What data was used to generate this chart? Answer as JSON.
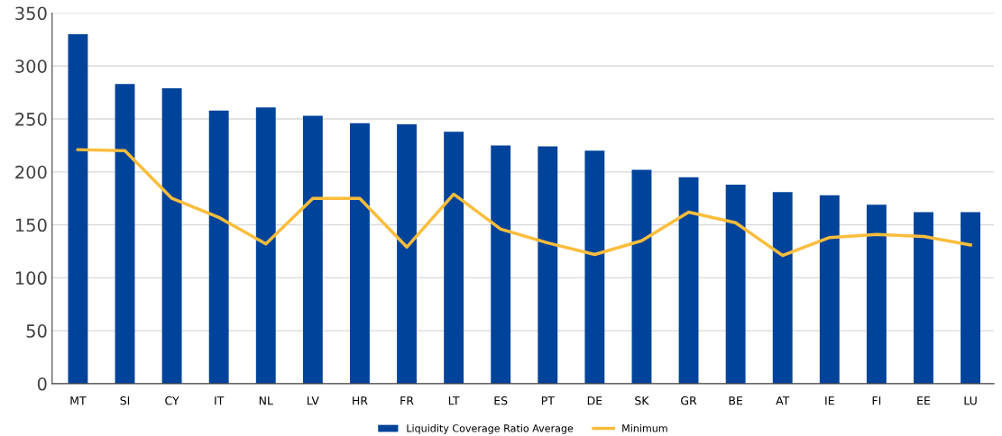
{
  "chart_data": {
    "type": "bar",
    "categories": [
      "MT",
      "SI",
      "CY",
      "IT",
      "NL",
      "LV",
      "HR",
      "FR",
      "LT",
      "ES",
      "PT",
      "DE",
      "SK",
      "GR",
      "BE",
      "AT",
      "IE",
      "FI",
      "EE",
      "LU"
    ],
    "series": [
      {
        "name": "Liquidity Coverage Ratio Average",
        "color": "#00439a",
        "values": [
          330,
          283,
          279,
          258,
          261,
          253,
          246,
          245,
          238,
          225,
          224,
          220,
          202,
          195,
          188,
          181,
          178,
          169,
          162,
          162
        ]
      },
      {
        "name": "Minimum",
        "type": "line",
        "color": "#fbbd3c",
        "values": [
          221,
          220,
          175,
          157,
          132,
          175,
          175,
          129,
          179,
          146,
          133,
          122,
          135,
          162,
          152,
          121,
          138,
          141,
          139,
          131
        ]
      }
    ],
    "ylim": [
      0,
      350
    ],
    "yticks": [
      0,
      50,
      100,
      150,
      200,
      250,
      300,
      350
    ],
    "grid": "y",
    "legend": "bottom",
    "marker": "none",
    "line_style": "solid"
  }
}
